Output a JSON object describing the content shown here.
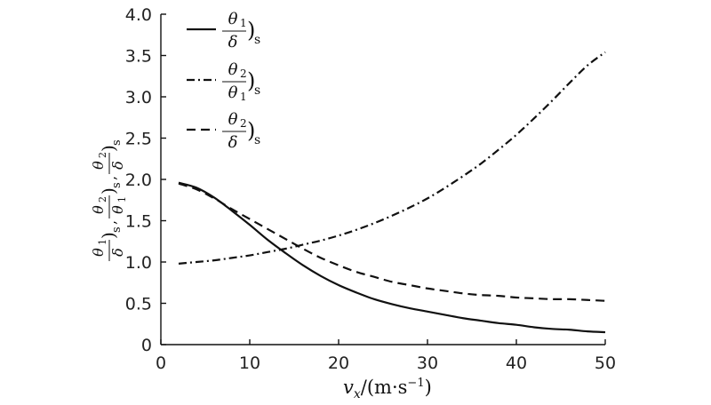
{
  "chart_data": {
    "type": "line",
    "xlim": [
      0,
      50
    ],
    "ylim": [
      0,
      4.0
    ],
    "x_ticks": [
      "0",
      "10",
      "20",
      "30",
      "40",
      "50"
    ],
    "y_ticks": [
      "0",
      "0.5",
      "1.0",
      "1.5",
      "2.0",
      "2.5",
      "3.0",
      "3.5",
      "4.0"
    ],
    "xlabel": {
      "var": "v",
      "sub": "x",
      "units": "/(m·s",
      "sup": "−1",
      "close": ")"
    },
    "ylabel": {
      "f1_num": "θ",
      "f1_num_sub": "1",
      "f1_den": "δ",
      "f2_num": "θ",
      "f2_num_sub": "2",
      "f2_den": "θ",
      "f2_den_sub": "1",
      "f3_num": "θ",
      "f3_num_sub": "2",
      "f3_den": "δ",
      "paren": ")",
      "s": "s",
      "comma": ","
    },
    "legend_position": "top-left",
    "grid": false,
    "series": [
      {
        "key": "theta1_over_delta",
        "legend": {
          "num": "θ",
          "num_sub": "1",
          "den": "δ",
          "den_sub": "",
          "paren": ")",
          "s": "s"
        },
        "style": "solid",
        "x": [
          2,
          4,
          6,
          8,
          10,
          12,
          14,
          16,
          18,
          20,
          22,
          24,
          26,
          28,
          30,
          32,
          34,
          36,
          38,
          40,
          42,
          44,
          46,
          48,
          50
        ],
        "y": [
          1.96,
          1.9,
          1.78,
          1.62,
          1.45,
          1.27,
          1.11,
          0.96,
          0.83,
          0.72,
          0.63,
          0.55,
          0.49,
          0.44,
          0.4,
          0.36,
          0.32,
          0.29,
          0.26,
          0.24,
          0.21,
          0.19,
          0.18,
          0.16,
          0.15
        ]
      },
      {
        "key": "theta2_over_theta1",
        "legend": {
          "num": "θ",
          "num_sub": "2",
          "den": "θ",
          "den_sub": "1",
          "paren": ")",
          "s": "s"
        },
        "style": "dashdot",
        "x": [
          2,
          4,
          6,
          8,
          10,
          12,
          14,
          16,
          18,
          20,
          22,
          24,
          26,
          28,
          30,
          32,
          34,
          36,
          38,
          40,
          42,
          44,
          46,
          48,
          50
        ],
        "y": [
          0.98,
          1.0,
          1.02,
          1.05,
          1.08,
          1.12,
          1.16,
          1.21,
          1.26,
          1.32,
          1.39,
          1.47,
          1.56,
          1.66,
          1.77,
          1.9,
          2.04,
          2.19,
          2.36,
          2.54,
          2.74,
          2.95,
          3.17,
          3.38,
          3.54
        ]
      },
      {
        "key": "theta2_over_delta",
        "legend": {
          "num": "θ",
          "num_sub": "2",
          "den": "δ",
          "den_sub": "",
          "paren": ")",
          "s": "s"
        },
        "style": "dashed",
        "x": [
          2,
          4,
          6,
          8,
          10,
          12,
          14,
          16,
          18,
          20,
          22,
          24,
          26,
          28,
          30,
          32,
          34,
          36,
          38,
          40,
          42,
          44,
          46,
          48,
          50
        ],
        "y": [
          1.95,
          1.88,
          1.77,
          1.64,
          1.52,
          1.4,
          1.28,
          1.16,
          1.05,
          0.96,
          0.88,
          0.82,
          0.76,
          0.72,
          0.68,
          0.65,
          0.62,
          0.6,
          0.59,
          0.57,
          0.56,
          0.55,
          0.55,
          0.54,
          0.53
        ]
      }
    ]
  }
}
